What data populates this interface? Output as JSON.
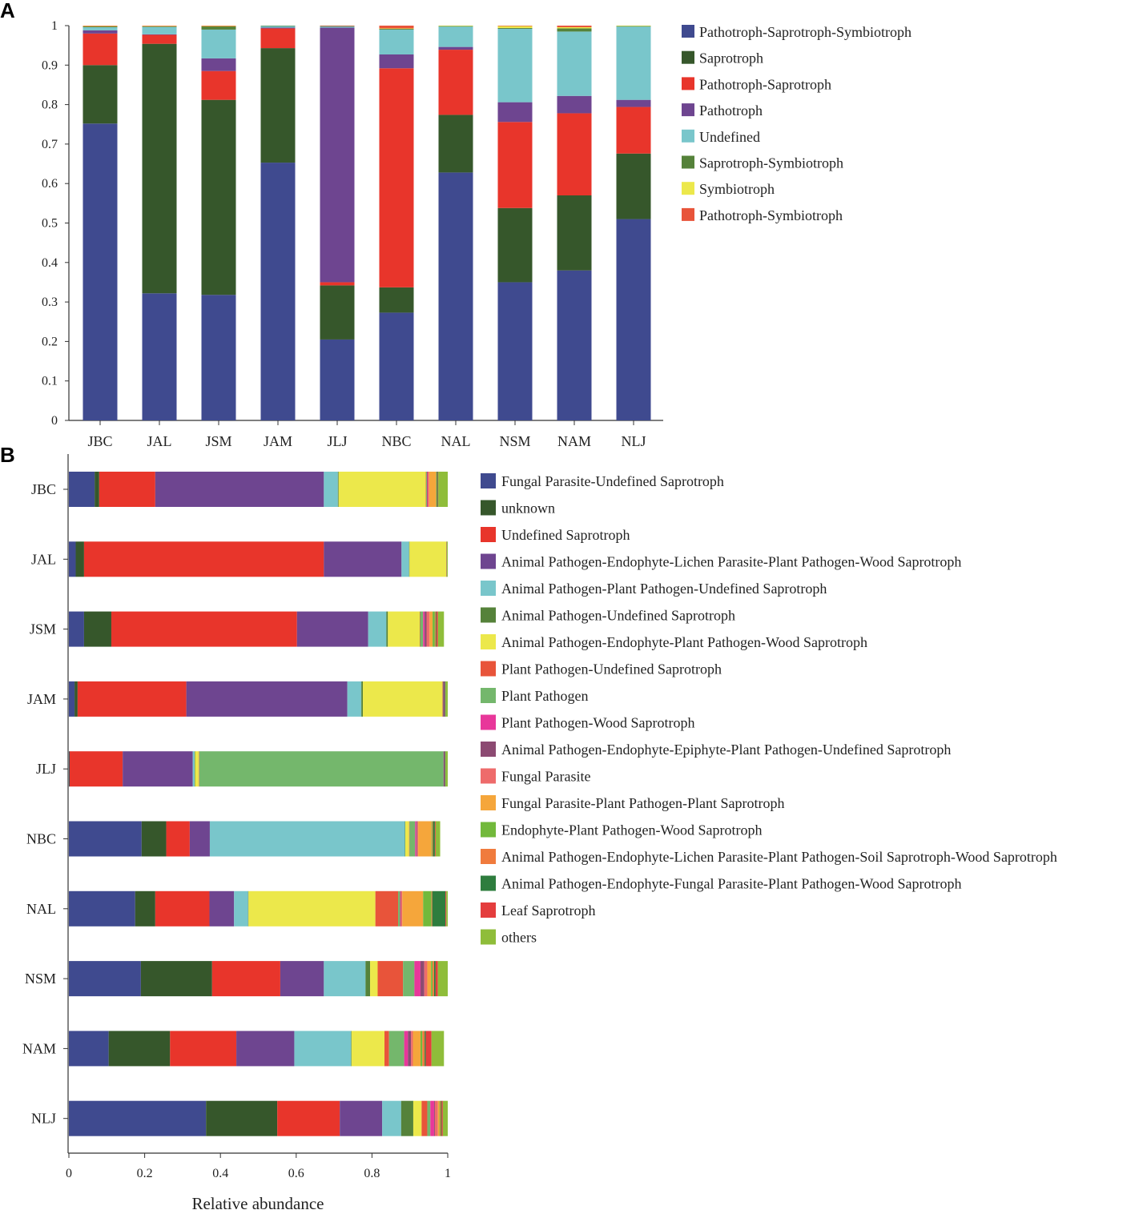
{
  "chart_data": [
    {
      "panel": "A",
      "type": "bar",
      "orientation": "vertical",
      "stacked": true,
      "title": "",
      "xlabel": "",
      "ylabel": "",
      "ylim": [
        0,
        1
      ],
      "yticks": [
        "0",
        "0.1",
        "0.2",
        "0.3",
        "0.4",
        "0.5",
        "0.6",
        "0.7",
        "0.8",
        "0.9",
        "1"
      ],
      "categories": [
        "JBC",
        "JAL",
        "JSM",
        "JAM",
        "JLJ",
        "NBC",
        "NAL",
        "NSM",
        "NAM",
        "NLJ"
      ],
      "legend_position": "right",
      "series": [
        {
          "name": "Pathotroph-Saprotroph-Symbiotroph",
          "color": "#3f4a8f",
          "values": [
            0.752,
            0.322,
            0.318,
            0.653,
            0.205,
            0.273,
            0.628,
            0.35,
            0.38,
            0.51
          ]
        },
        {
          "name": "Saprotroph",
          "color": "#36572b",
          "values": [
            0.148,
            0.632,
            0.494,
            0.29,
            0.137,
            0.064,
            0.146,
            0.188,
            0.19,
            0.166
          ]
        },
        {
          "name": "Pathotroph-Saprotroph",
          "color": "#e8352b",
          "values": [
            0.08,
            0.023,
            0.073,
            0.05,
            0.008,
            0.555,
            0.165,
            0.218,
            0.208,
            0.118
          ]
        },
        {
          "name": "Pathotroph",
          "color": "#6e4590",
          "values": [
            0.008,
            0.001,
            0.032,
            0.002,
            0.645,
            0.035,
            0.007,
            0.05,
            0.044,
            0.018
          ]
        },
        {
          "name": "Undefined",
          "color": "#79c6cb",
          "values": [
            0.008,
            0.019,
            0.073,
            0.004,
            0.003,
            0.063,
            0.052,
            0.186,
            0.163,
            0.186
          ]
        },
        {
          "name": "Saprotroph-Symbiotroph",
          "color": "#55823a",
          "values": [
            0.002,
            0.001,
            0.008,
            0.001,
            0.001,
            0.002,
            0.001,
            0.002,
            0.008,
            0.001
          ]
        },
        {
          "name": "Symbiotroph",
          "color": "#ece84b",
          "values": [
            0.001,
            0.001,
            0.001,
            0.0,
            0.0,
            0.001,
            0.001,
            0.005,
            0.003,
            0.001
          ]
        },
        {
          "name": "Pathotroph-Symbiotroph",
          "color": "#e8543a",
          "values": [
            0.001,
            0.001,
            0.001,
            0.0,
            0.001,
            0.007,
            0.0,
            0.001,
            0.004,
            0.0
          ]
        }
      ]
    },
    {
      "panel": "B",
      "type": "bar",
      "orientation": "horizontal",
      "stacked": true,
      "title": "",
      "xlabel": "Relative abundance",
      "ylabel": "",
      "xlim": [
        0,
        1
      ],
      "xticks": [
        "0",
        "0.2",
        "0.4",
        "0.6",
        "0.8",
        "1"
      ],
      "categories": [
        "JBC",
        "JAL",
        "JSM",
        "JAM",
        "JLJ",
        "NBC",
        "NAL",
        "NSM",
        "NAM",
        "NLJ"
      ],
      "legend_position": "right",
      "series": [
        {
          "name": "Fungal Parasite-Undefined Saprotroph",
          "color": "#3f4a8f",
          "values": [
            0.068,
            0.018,
            0.04,
            0.015,
            0.001,
            0.192,
            0.175,
            0.19,
            0.105,
            0.362
          ]
        },
        {
          "name": "unknown",
          "color": "#36572b",
          "values": [
            0.012,
            0.022,
            0.072,
            0.008,
            0.001,
            0.065,
            0.053,
            0.188,
            0.162,
            0.188
          ]
        },
        {
          "name": "Undefined Saprotroph",
          "color": "#e8352b",
          "values": [
            0.148,
            0.633,
            0.49,
            0.287,
            0.14,
            0.062,
            0.143,
            0.18,
            0.175,
            0.165
          ]
        },
        {
          "name": "Animal Pathogen-Endophyte-Lichen Parasite-Plant Pathogen-Wood Saprotroph",
          "color": "#6e4590",
          "values": [
            0.445,
            0.205,
            0.188,
            0.425,
            0.185,
            0.053,
            0.065,
            0.115,
            0.153,
            0.112
          ]
        },
        {
          "name": "Animal Pathogen-Plant Pathogen-Undefined Saprotroph",
          "color": "#79c6cb",
          "values": [
            0.037,
            0.02,
            0.048,
            0.037,
            0.005,
            0.515,
            0.037,
            0.11,
            0.15,
            0.05
          ]
        },
        {
          "name": "Animal Pathogen-Undefined Saprotroph",
          "color": "#55823a",
          "values": [
            0.002,
            0.001,
            0.004,
            0.004,
            0.001,
            0.001,
            0.001,
            0.012,
            0.001,
            0.032
          ]
        },
        {
          "name": "Animal Pathogen-Endophyte-Plant Pathogen-Wood Saprotroph",
          "color": "#ece84b",
          "values": [
            0.23,
            0.097,
            0.084,
            0.21,
            0.01,
            0.01,
            0.335,
            0.02,
            0.087,
            0.022
          ]
        },
        {
          "name": "Plant Pathogen-Undefined Saprotroph",
          "color": "#e8543a",
          "values": [
            0.001,
            0.001,
            0.001,
            0.001,
            0.001,
            0.001,
            0.06,
            0.067,
            0.012,
            0.015
          ]
        },
        {
          "name": "Plant Pathogen",
          "color": "#74b76c",
          "values": [
            0.002,
            0.001,
            0.008,
            0.001,
            0.645,
            0.015,
            0.005,
            0.03,
            0.04,
            0.008
          ]
        },
        {
          "name": "Plant Pathogen-Wood Saprotroph",
          "color": "#e8379a",
          "values": [
            0.001,
            0.0,
            0.004,
            0.0,
            0.0,
            0.003,
            0.001,
            0.016,
            0.01,
            0.01
          ]
        },
        {
          "name": "Animal Pathogen-Endophyte-Epiphyte-Plant Pathogen-Undefined Saprotroph",
          "color": "#8c4a72",
          "values": [
            0.001,
            0.0,
            0.005,
            0.005,
            0.004,
            0.002,
            0.001,
            0.01,
            0.008,
            0.002
          ]
        },
        {
          "name": "Fungal Parasite",
          "color": "#ee6b6b",
          "values": [
            0.004,
            0.0,
            0.008,
            0.0,
            0.0,
            0.003,
            0.004,
            0.008,
            0.005,
            0.008
          ]
        },
        {
          "name": "Fungal Parasite-Plant Pathogen-Plant Saprotroph",
          "color": "#f5a63b",
          "values": [
            0.018,
            0.0,
            0.008,
            0.0,
            0.0,
            0.035,
            0.055,
            0.01,
            0.02,
            0.004
          ]
        },
        {
          "name": "Endophyte-Plant Pathogen-Wood Saprotroph",
          "color": "#72b93b",
          "values": [
            0.001,
            0.0,
            0.006,
            0.0,
            0.0,
            0.002,
            0.022,
            0.004,
            0.005,
            0.002
          ]
        },
        {
          "name": "Animal Pathogen-Endophyte-Lichen Parasite-Plant Pathogen-Soil Saprotroph-Wood Saprotroph",
          "color": "#f07b3d",
          "values": [
            0.001,
            0.0,
            0.002,
            0.0,
            0.0,
            0.002,
            0.002,
            0.004,
            0.006,
            0.002
          ]
        },
        {
          "name": "Animal Pathogen-Endophyte-Fungal Parasite-Plant Pathogen-Wood Saprotroph",
          "color": "#2e7d3e",
          "values": [
            0.003,
            0.0,
            0.002,
            0.001,
            0.001,
            0.005,
            0.035,
            0.004,
            0.003,
            0.002
          ]
        },
        {
          "name": "Leaf Saprotroph",
          "color": "#e43d3d",
          "values": [
            0.001,
            0.0,
            0.004,
            0.0,
            0.0,
            0.002,
            0.002,
            0.006,
            0.015,
            0.003
          ]
        },
        {
          "name": "others",
          "color": "#8fbd3a",
          "values": [
            0.025,
            0.002,
            0.016,
            0.006,
            0.006,
            0.012,
            0.004,
            0.026,
            0.033,
            0.013
          ]
        }
      ]
    }
  ]
}
